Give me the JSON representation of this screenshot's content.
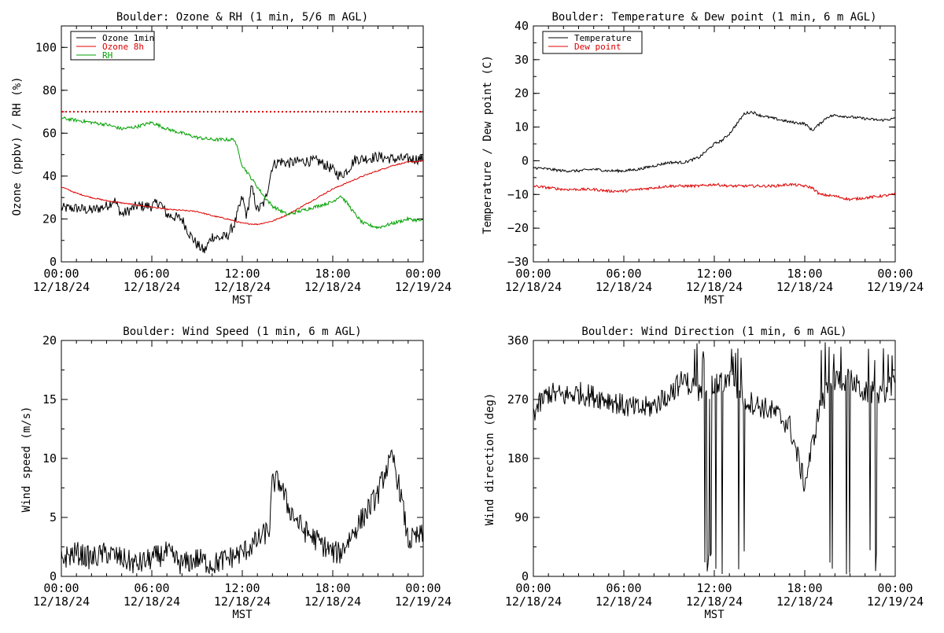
{
  "charts": [
    {
      "id": "ozone-rh",
      "title": "Boulder: Ozone & RH (1 min, 5/6 m AGL)",
      "ylabel": "Ozone (ppbv) / RH (%)",
      "xlabel": "MST",
      "ylim": [
        0,
        110
      ],
      "yticks": [
        "0",
        "20",
        "40",
        "60",
        "80",
        "100"
      ],
      "ytick_values": [
        0,
        20,
        40,
        60,
        80,
        100
      ],
      "reference_line": {
        "value": 70,
        "color": "#dd0000",
        "style": "dotted"
      },
      "legend": [
        {
          "label": "Ozone 1min",
          "color": "#000000"
        },
        {
          "label": "Ozone 8h",
          "color": "#dd0000"
        },
        {
          "label": "RH",
          "color": "#00a000"
        }
      ]
    },
    {
      "id": "temp-dew",
      "title": "Boulder: Temperature & Dew point (1 min, 6 m AGL)",
      "ylabel": "Temperature / Dew point (C)",
      "xlabel": "MST",
      "ylim": [
        -30,
        40
      ],
      "yticks": [
        "−30",
        "−20",
        "−10",
        "0",
        "10",
        "20",
        "30",
        "40"
      ],
      "ytick_values": [
        -30,
        -20,
        -10,
        0,
        10,
        20,
        30,
        40
      ],
      "legend": [
        {
          "label": "Temperature",
          "color": "#000000"
        },
        {
          "label": "Dew point",
          "color": "#dd0000"
        }
      ]
    },
    {
      "id": "wind-speed",
      "title": "Boulder: Wind Speed (1 min, 6 m AGL)",
      "ylabel": "Wind speed (m/s)",
      "xlabel": "MST",
      "ylim": [
        0,
        20
      ],
      "yticks": [
        "0",
        "5",
        "10",
        "15",
        "20"
      ],
      "ytick_values": [
        0,
        5,
        10,
        15,
        20
      ],
      "legend": []
    },
    {
      "id": "wind-dir",
      "title": "Boulder: Wind Direction (1 min, 6 m AGL)",
      "ylabel": "Wind direction (deg)",
      "xlabel": "MST",
      "ylim": [
        0,
        360
      ],
      "yticks": [
        "0",
        "90",
        "180",
        "270",
        "360"
      ],
      "ytick_values": [
        0,
        90,
        180,
        270,
        360
      ],
      "legend": []
    }
  ],
  "xaxis": {
    "range_hours": [
      0,
      24
    ],
    "tick_hours": [
      0,
      6,
      12,
      18,
      24
    ],
    "tick_times": [
      "00:00",
      "06:00",
      "12:00",
      "18:00",
      "00:00"
    ],
    "tick_dates": [
      "12/18/24",
      "12/18/24",
      "12/18/24",
      "12/18/24",
      "12/19/24"
    ]
  },
  "chart_data": [
    {
      "type": "line",
      "title": "Boulder: Ozone & RH (1 min, 5/6 m AGL)",
      "ylabel": "Ozone (ppbv) / RH (%)",
      "xlabel": "MST",
      "ylim": [
        0,
        110
      ],
      "x_unit": "hours since 12/18/24 00:00 MST",
      "series": [
        {
          "name": "Ozone 1min",
          "color": "#000000",
          "points": [
            [
              0,
              25
            ],
            [
              1,
              25
            ],
            [
              2,
              24
            ],
            [
              3,
              26
            ],
            [
              3.5,
              29
            ],
            [
              4,
              22
            ],
            [
              5,
              26
            ],
            [
              6,
              26
            ],
            [
              6.5,
              28
            ],
            [
              7,
              22
            ],
            [
              8,
              20
            ],
            [
              8.5,
              13
            ],
            [
              9,
              8
            ],
            [
              9.5,
              5
            ],
            [
              10,
              12
            ],
            [
              10.5,
              11
            ],
            [
              11,
              12
            ],
            [
              11.5,
              18
            ],
            [
              12,
              30
            ],
            [
              12.3,
              21
            ],
            [
              12.6,
              35
            ],
            [
              13,
              24
            ],
            [
              13.5,
              28
            ],
            [
              14,
              45
            ],
            [
              14.5,
              47
            ],
            [
              15,
              46
            ],
            [
              16,
              47
            ],
            [
              17,
              47
            ],
            [
              17.8,
              44
            ],
            [
              18.5,
              40
            ],
            [
              19,
              43
            ],
            [
              19.5,
              48
            ],
            [
              20,
              48
            ],
            [
              21,
              49
            ],
            [
              22,
              48
            ],
            [
              23,
              48
            ],
            [
              23.5,
              48
            ],
            [
              24,
              48
            ]
          ]
        },
        {
          "name": "Ozone 8h",
          "color": "#dd0000",
          "points": [
            [
              0,
              35
            ],
            [
              1,
              32
            ],
            [
              2,
              30
            ],
            [
              3,
              28.5
            ],
            [
              4,
              27.5
            ],
            [
              5,
              26.5
            ],
            [
              6,
              25.5
            ],
            [
              7,
              24.5
            ],
            [
              8,
              24
            ],
            [
              9,
              23.5
            ],
            [
              10,
              21.5
            ],
            [
              11,
              20
            ],
            [
              12,
              18
            ],
            [
              13,
              17.5
            ],
            [
              14,
              19
            ],
            [
              15,
              22
            ],
            [
              16,
              26
            ],
            [
              17,
              30
            ],
            [
              18,
              34
            ],
            [
              19,
              37
            ],
            [
              20,
              40
            ],
            [
              21,
              42.5
            ],
            [
              22,
              45
            ],
            [
              23,
              46.5
            ],
            [
              24,
              47
            ]
          ]
        },
        {
          "name": "RH",
          "color": "#00a000",
          "points": [
            [
              0,
              67
            ],
            [
              1,
              66
            ],
            [
              2,
              65
            ],
            [
              3,
              64
            ],
            [
              4,
              62
            ],
            [
              5,
              63
            ],
            [
              6,
              65
            ],
            [
              7,
              62
            ],
            [
              8,
              60
            ],
            [
              9,
              58
            ],
            [
              10,
              57
            ],
            [
              11,
              57
            ],
            [
              11.5,
              57
            ],
            [
              12,
              45
            ],
            [
              12.5,
              40
            ],
            [
              13,
              35
            ],
            [
              13.5,
              30
            ],
            [
              14,
              26
            ],
            [
              15,
              22
            ],
            [
              16,
              24
            ],
            [
              17,
              26
            ],
            [
              18,
              28
            ],
            [
              18.5,
              31
            ],
            [
              19,
              27
            ],
            [
              19.5,
              22
            ],
            [
              20,
              18
            ],
            [
              21,
              16
            ],
            [
              22,
              18
            ],
            [
              23,
              20
            ],
            [
              24,
              19
            ]
          ]
        }
      ],
      "reference_line": 70
    },
    {
      "type": "line",
      "title": "Boulder: Temperature & Dew point (1 min, 6 m AGL)",
      "ylabel": "Temperature / Dew point (C)",
      "xlabel": "MST",
      "ylim": [
        -30,
        40
      ],
      "x_unit": "hours since 12/18/24 00:00 MST",
      "series": [
        {
          "name": "Temperature",
          "color": "#000000",
          "points": [
            [
              0,
              -2
            ],
            [
              1,
              -2.5
            ],
            [
              2,
              -3
            ],
            [
              3,
              -3
            ],
            [
              4,
              -2.5
            ],
            [
              5,
              -3
            ],
            [
              6,
              -3
            ],
            [
              7,
              -2.5
            ],
            [
              8,
              -1.5
            ],
            [
              9,
              -0.5
            ],
            [
              10,
              -0.5
            ],
            [
              11,
              1
            ],
            [
              12,
              5
            ],
            [
              12.5,
              6
            ],
            [
              13,
              8
            ],
            [
              13.5,
              11
            ],
            [
              14,
              14
            ],
            [
              14.5,
              14.5
            ],
            [
              15,
              13.5
            ],
            [
              16,
              12.5
            ],
            [
              17,
              11.5
            ],
            [
              18,
              11
            ],
            [
              18.5,
              9
            ],
            [
              19,
              11
            ],
            [
              19.5,
              13
            ],
            [
              20,
              13.5
            ],
            [
              21,
              13
            ],
            [
              22,
              12.5
            ],
            [
              23,
              12
            ],
            [
              24,
              12.5
            ]
          ]
        },
        {
          "name": "Dew point",
          "color": "#dd0000",
          "points": [
            [
              0,
              -7.5
            ],
            [
              1,
              -8
            ],
            [
              2,
              -8.5
            ],
            [
              3,
              -8.5
            ],
            [
              4,
              -8.5
            ],
            [
              5,
              -9
            ],
            [
              6,
              -9
            ],
            [
              7,
              -8.5
            ],
            [
              8,
              -8
            ],
            [
              9,
              -7.5
            ],
            [
              10,
              -7.5
            ],
            [
              11,
              -7.5
            ],
            [
              12,
              -7
            ],
            [
              13,
              -7.5
            ],
            [
              14,
              -7.5
            ],
            [
              15,
              -7.5
            ],
            [
              16,
              -7.5
            ],
            [
              17,
              -7
            ],
            [
              18,
              -7.5
            ],
            [
              18.5,
              -8
            ],
            [
              19,
              -10
            ],
            [
              20,
              -10.5
            ],
            [
              21,
              -11.5
            ],
            [
              22,
              -11
            ],
            [
              23,
              -10.5
            ],
            [
              24,
              -10
            ]
          ]
        }
      ]
    },
    {
      "type": "line",
      "title": "Boulder: Wind Speed (1 min, 6 m AGL)",
      "ylabel": "Wind speed (m/s)",
      "xlabel": "MST",
      "ylim": [
        0,
        20
      ],
      "x_unit": "hours since 12/18/24 00:00 MST",
      "series": [
        {
          "name": "",
          "color": "#000000",
          "points": [
            [
              0,
              1.5
            ],
            [
              1,
              2
            ],
            [
              2,
              1.5
            ],
            [
              3,
              2
            ],
            [
              4,
              1.5
            ],
            [
              5,
              1
            ],
            [
              6,
              1.5
            ],
            [
              7,
              2
            ],
            [
              8,
              1
            ],
            [
              9,
              1.5
            ],
            [
              10,
              1
            ],
            [
              11,
              1.5
            ],
            [
              12,
              2
            ],
            [
              13,
              3
            ],
            [
              13.8,
              4
            ],
            [
              14,
              8
            ],
            [
              14.5,
              8
            ],
            [
              15,
              6
            ],
            [
              16,
              4
            ],
            [
              17,
              3
            ],
            [
              18,
              2
            ],
            [
              18.5,
              2
            ],
            [
              19,
              3
            ],
            [
              20,
              5
            ],
            [
              21,
              7
            ],
            [
              21.5,
              9
            ],
            [
              22,
              10
            ],
            [
              22.5,
              7
            ],
            [
              23,
              3
            ],
            [
              24,
              3.5
            ]
          ]
        }
      ]
    },
    {
      "type": "line",
      "title": "Boulder: Wind Direction (1 min, 6 m AGL)",
      "ylabel": "Wind direction (deg)",
      "xlabel": "MST",
      "ylim": [
        0,
        360
      ],
      "x_unit": "hours since 12/18/24 00:00 MST",
      "series": [
        {
          "name": "",
          "color": "#000000",
          "points": [
            [
              0,
              250
            ],
            [
              1,
              280
            ],
            [
              2,
              275
            ],
            [
              3,
              280
            ],
            [
              4,
              275
            ],
            [
              5,
              270
            ],
            [
              6,
              260
            ],
            [
              7,
              255
            ],
            [
              8,
              260
            ],
            [
              9,
              280
            ],
            [
              10,
              300
            ],
            [
              11,
              280
            ],
            [
              12,
              290
            ],
            [
              13,
              300
            ],
            [
              14,
              270
            ],
            [
              15,
              260
            ],
            [
              16,
              250
            ],
            [
              17,
              230
            ],
            [
              18,
              140
            ],
            [
              19,
              260
            ],
            [
              20,
              300
            ],
            [
              21,
              300
            ],
            [
              22,
              280
            ],
            [
              23,
              280
            ],
            [
              24,
              290
            ]
          ]
        }
      ]
    }
  ]
}
